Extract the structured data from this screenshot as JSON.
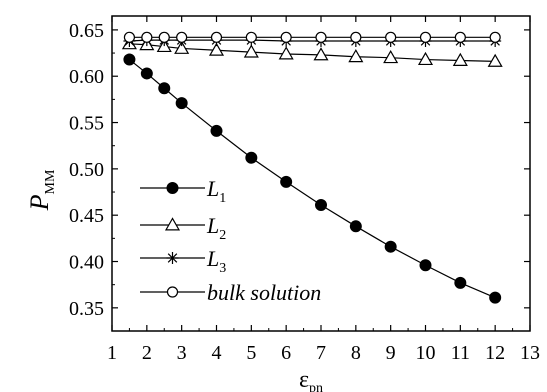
{
  "chart_data": {
    "type": "line",
    "title": "",
    "xlabel": "ε",
    "xlabel_sub": "pn",
    "ylabel": "P",
    "ylabel_sub": "MM",
    "xlim": [
      1,
      13
    ],
    "ylim": [
      0.325,
      0.665
    ],
    "x_ticks": [
      1,
      2,
      3,
      4,
      5,
      6,
      7,
      8,
      9,
      10,
      11,
      12,
      13
    ],
    "y_ticks": [
      0.35,
      0.4,
      0.45,
      0.5,
      0.55,
      0.6,
      0.65
    ],
    "y_tick_labels": [
      "0.35",
      "0.40",
      "0.45",
      "0.50",
      "0.55",
      "0.60",
      "0.65"
    ],
    "grid": false,
    "legend_position": "bottom-left",
    "series": [
      {
        "name": "L",
        "name_sub": "1",
        "marker": "filled-circle",
        "x": [
          1.5,
          2,
          2.5,
          3,
          4,
          5,
          6,
          7,
          8,
          9,
          10,
          11,
          12
        ],
        "y": [
          0.618,
          0.603,
          0.587,
          0.571,
          0.541,
          0.512,
          0.486,
          0.461,
          0.438,
          0.416,
          0.396,
          0.377,
          0.361
        ]
      },
      {
        "name": "L",
        "name_sub": "2",
        "marker": "open-triangle",
        "x": [
          1.5,
          2,
          2.5,
          3,
          4,
          5,
          6,
          7,
          8,
          9,
          10,
          11,
          12
        ],
        "y": [
          0.635,
          0.634,
          0.632,
          0.63,
          0.628,
          0.626,
          0.624,
          0.623,
          0.621,
          0.62,
          0.618,
          0.617,
          0.616
        ]
      },
      {
        "name": "L",
        "name_sub": "3",
        "marker": "asterisk",
        "x": [
          1.5,
          2,
          2.5,
          3,
          4,
          5,
          6,
          7,
          8,
          9,
          10,
          11,
          12
        ],
        "y": [
          0.638,
          0.639,
          0.639,
          0.639,
          0.639,
          0.639,
          0.638,
          0.638,
          0.638,
          0.638,
          0.638,
          0.638,
          0.638
        ]
      },
      {
        "name": "bulk solution",
        "name_sub": "",
        "marker": "open-circle",
        "x": [
          1.5,
          2,
          2.5,
          3,
          4,
          5,
          6,
          7,
          8,
          9,
          10,
          11,
          12
        ],
        "y": [
          0.642,
          0.642,
          0.642,
          0.642,
          0.642,
          0.642,
          0.642,
          0.642,
          0.642,
          0.642,
          0.642,
          0.642,
          0.642
        ]
      }
    ]
  }
}
